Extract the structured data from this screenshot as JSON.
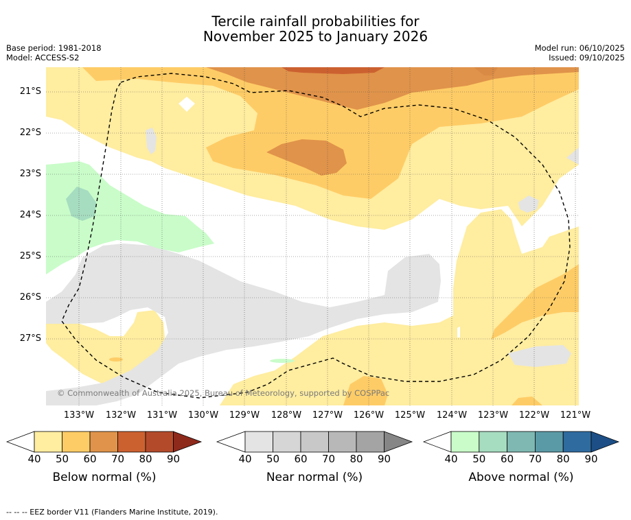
{
  "title_line1": "Tercile rainfall probabilities for",
  "title_line2": "November 2025 to January 2026",
  "base_period": "Base period: 1981-2018",
  "model": "Model: ACCESS-S2",
  "model_run": "Model run: 06/10/2025",
  "issued": "Issued: 09/10/2025",
  "latitudes": [
    "21°S",
    "22°S",
    "23°S",
    "24°S",
    "25°S",
    "26°S",
    "27°S"
  ],
  "longitudes": [
    "133°W",
    "132°W",
    "131°W",
    "130°W",
    "129°W",
    "128°W",
    "127°W",
    "126°W",
    "125°W",
    "124°W",
    "123°W",
    "122°W",
    "121°W"
  ],
  "copyright": "© Commonwealth of Australia 2025, Bureau of Meteorology, supported by COSPPac",
  "colorbars": [
    {
      "title": "Below normal (%)",
      "ticks": [
        "40",
        "50",
        "60",
        "70",
        "80",
        "90"
      ],
      "colors": [
        "#ffeda0",
        "#fecc66",
        "#e0934a",
        "#cc6130",
        "#b34b2b",
        "#8e2a1c"
      ]
    },
    {
      "title": "Near normal (%)",
      "ticks": [
        "40",
        "50",
        "60",
        "70",
        "80",
        "90"
      ],
      "colors": [
        "#e4e4e4",
        "#d6d6d6",
        "#c8c8c8",
        "#b8b8b8",
        "#a4a4a4",
        "#868686"
      ]
    },
    {
      "title": "Above normal (%)",
      "ticks": [
        "40",
        "50",
        "60",
        "70",
        "80",
        "90"
      ],
      "colors": [
        "#c9fcc9",
        "#a6dcc0",
        "#7fb8b2",
        "#5a9aa6",
        "#2f6b9f",
        "#1d4f86"
      ]
    }
  ],
  "footer": "--  --  -- EEZ border V11 (Flanders Marine Institute, 2019)."
}
